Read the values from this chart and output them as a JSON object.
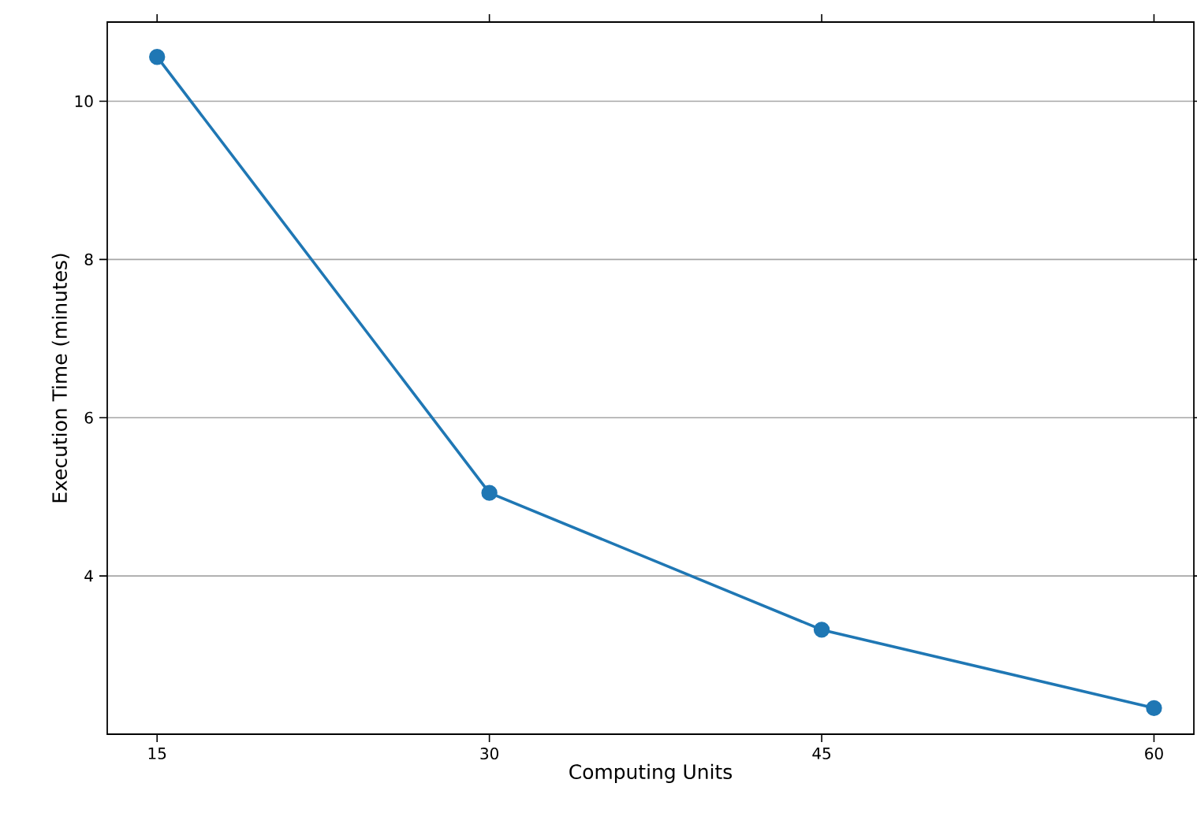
{
  "chart_data": {
    "type": "line",
    "xlabel": "Computing Units",
    "ylabel": "Execution Time (minutes)",
    "x": [
      15,
      30,
      45,
      60
    ],
    "series": [
      {
        "color": "#1f77b4",
        "values": [
          10.56,
          5.05,
          3.32,
          2.33
        ]
      }
    ],
    "xlim": [
      12.75,
      61.8
    ],
    "ylim": [
      2.0,
      11.0
    ],
    "xticks": [
      15,
      30,
      45,
      60
    ],
    "yticks": [
      4,
      6,
      8,
      10
    ],
    "grid": "y",
    "marker": "circle",
    "line_style": "solid"
  }
}
